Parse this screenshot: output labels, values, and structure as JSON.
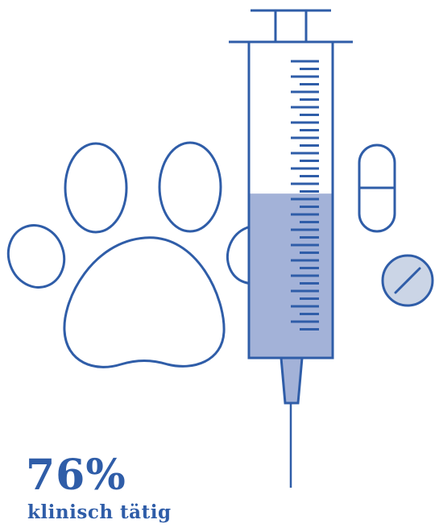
{
  "colors": {
    "stroke": "#2F5DA8",
    "liquid": "#A3B2D8",
    "pill_tablet_fill": "#CBD5E6",
    "text": "#2F5DA8",
    "background": "#FFFFFF"
  },
  "illustration": {
    "icons": [
      "paw-icon",
      "syringe-icon",
      "capsule-icon",
      "tablet-icon"
    ],
    "syringe_fill_fraction": 0.52
  },
  "stat": {
    "value": "76%",
    "label": "klinisch tätig"
  }
}
